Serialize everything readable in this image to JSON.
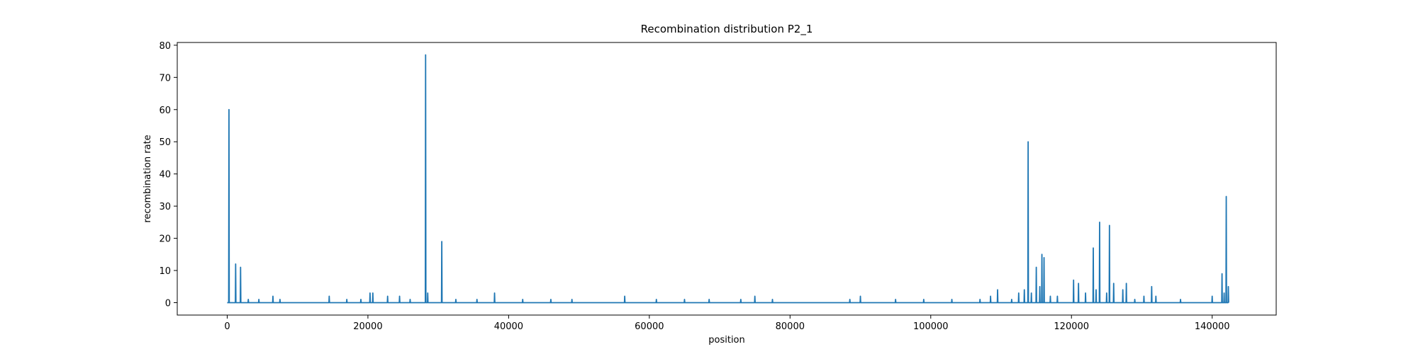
{
  "chart_data": {
    "type": "line",
    "title": "Recombination distribution P2_1",
    "x_label": "position",
    "y_label": "recombination rate",
    "xlim": [
      -7100,
      149100
    ],
    "ylim": [
      -3.85,
      80.85
    ],
    "xticks": [
      0,
      20000,
      40000,
      60000,
      80000,
      100000,
      120000,
      140000
    ],
    "yticks": [
      0,
      10,
      20,
      30,
      40,
      50,
      60,
      70,
      80
    ],
    "grid": false,
    "x": [
      0,
      210,
      250,
      290,
      1160,
      1200,
      1240,
      1860,
      1900,
      1940,
      2960,
      3000,
      3040,
      4460,
      4500,
      4540,
      6460,
      6500,
      6540,
      7460,
      7500,
      7540,
      14460,
      14500,
      14540,
      16960,
      17000,
      17040,
      18960,
      19000,
      19040,
      20260,
      20300,
      20340,
      20660,
      20700,
      20740,
      22760,
      22800,
      22840,
      24460,
      24500,
      24540,
      25960,
      26000,
      26040,
      28160,
      28200,
      28240,
      28460,
      28500,
      28540,
      30460,
      30500,
      30540,
      32460,
      32500,
      32540,
      35460,
      35500,
      35540,
      37960,
      38000,
      38040,
      41960,
      42000,
      42040,
      45960,
      46000,
      46040,
      48960,
      49000,
      49040,
      56460,
      56500,
      56540,
      60960,
      61000,
      61040,
      64960,
      65000,
      65040,
      68460,
      68500,
      68540,
      72960,
      73000,
      73040,
      74960,
      75000,
      75040,
      77460,
      77500,
      77540,
      88460,
      88500,
      88540,
      89960,
      90000,
      90040,
      94960,
      95000,
      95040,
      98960,
      99000,
      99040,
      102960,
      103000,
      103040,
      106960,
      107000,
      107040,
      108460,
      108500,
      108540,
      109460,
      109500,
      109540,
      111460,
      111500,
      111540,
      112460,
      112500,
      112540,
      113260,
      113300,
      113340,
      113800,
      113840,
      113880,
      114260,
      114300,
      114340,
      114960,
      115000,
      115040,
      115460,
      115500,
      115540,
      115760,
      115800,
      115840,
      116060,
      116100,
      116140,
      116960,
      117000,
      117040,
      117960,
      118000,
      118040,
      120260,
      120300,
      120340,
      120960,
      121000,
      121040,
      121960,
      122000,
      122040,
      123060,
      123100,
      123140,
      123460,
      123500,
      123540,
      123960,
      124000,
      124040,
      124960,
      125000,
      125040,
      125360,
      125400,
      125440,
      125960,
      126000,
      126040,
      127260,
      127300,
      127340,
      127760,
      127800,
      127840,
      128960,
      129000,
      129040,
      130260,
      130300,
      130340,
      131360,
      131400,
      131440,
      131960,
      132000,
      132040,
      135460,
      135500,
      135540,
      139960,
      140000,
      140040,
      141360,
      141400,
      141440,
      141660,
      141700,
      141740,
      141960,
      142000,
      142040,
      142260,
      142300,
      142340
    ],
    "series": [
      {
        "name": "recombination rate",
        "color": "#1f77b4",
        "values": [
          0,
          0,
          60,
          0,
          0,
          12,
          0,
          0,
          11,
          0,
          0,
          1,
          0,
          0,
          1,
          0,
          0,
          2,
          0,
          0,
          1,
          0,
          0,
          2,
          0,
          0,
          1,
          0,
          0,
          1,
          0,
          0,
          3,
          0,
          0,
          3,
          0,
          0,
          2,
          0,
          0,
          2,
          0,
          0,
          1,
          0,
          0,
          77,
          0,
          0,
          3,
          0,
          0,
          19,
          0,
          0,
          1,
          0,
          0,
          1,
          0,
          0,
          3,
          0,
          0,
          1,
          0,
          0,
          1,
          0,
          0,
          1,
          0,
          0,
          2,
          0,
          0,
          1,
          0,
          0,
          1,
          0,
          0,
          1,
          0,
          0,
          1,
          0,
          0,
          2,
          0,
          0,
          1,
          0,
          0,
          1,
          0,
          0,
          2,
          0,
          0,
          1,
          0,
          0,
          1,
          0,
          0,
          1,
          0,
          0,
          1,
          0,
          0,
          2,
          0,
          0,
          4,
          0,
          0,
          1,
          0,
          0,
          3,
          0,
          0,
          4,
          0,
          0,
          50,
          0,
          0,
          3,
          0,
          0,
          11,
          0,
          0,
          5,
          0,
          0,
          15,
          0,
          0,
          14,
          0,
          0,
          2,
          0,
          0,
          2,
          0,
          0,
          7,
          0,
          0,
          6,
          0,
          0,
          3,
          0,
          0,
          17,
          0,
          0,
          4,
          0,
          0,
          25,
          0,
          0,
          3,
          0,
          0,
          24,
          0,
          0,
          6,
          0,
          0,
          4,
          0,
          0,
          6,
          0,
          0,
          1,
          0,
          0,
          2,
          0,
          0,
          5,
          0,
          0,
          2,
          0,
          0,
          1,
          0,
          0,
          2,
          0,
          0,
          9,
          0,
          0,
          3,
          0,
          0,
          33,
          0,
          0,
          5,
          0
        ]
      }
    ]
  }
}
